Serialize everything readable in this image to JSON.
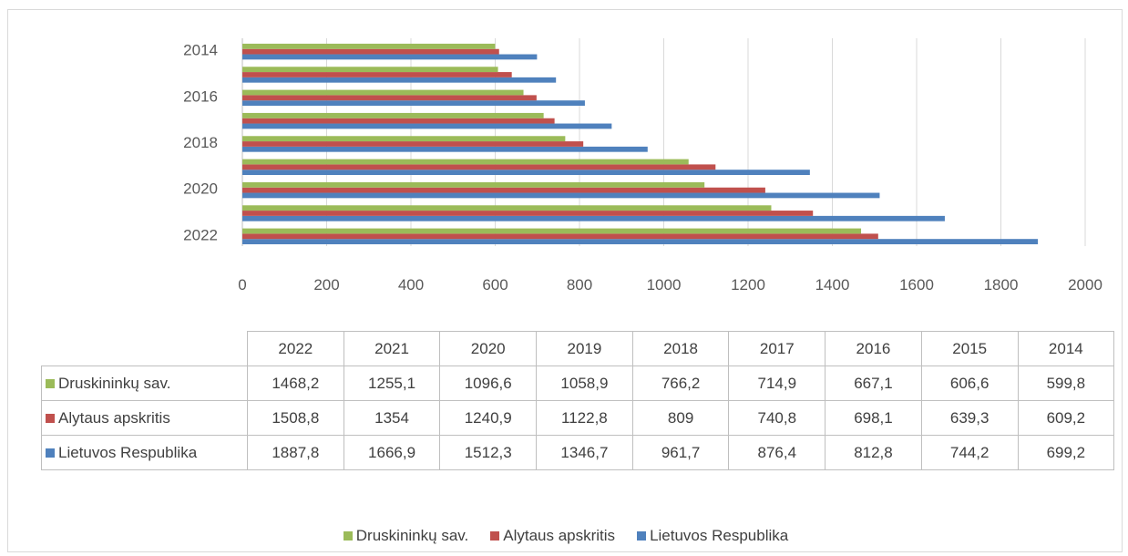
{
  "chart_data": {
    "type": "bar",
    "orientation": "horizontal",
    "categories": [
      "2022",
      "2021",
      "2020",
      "2019",
      "2018",
      "2017",
      "2016",
      "2015",
      "2014"
    ],
    "series": [
      {
        "name": "Druskininkų sav.",
        "color": "#9bbb59",
        "values": [
          1468.2,
          1255.1,
          1096.6,
          1058.9,
          766.2,
          714.9,
          667.1,
          606.6,
          599.8
        ],
        "display": [
          "1468,2",
          "1255,1",
          "1096,6",
          "1058,9",
          "766,2",
          "714,9",
          "667,1",
          "606,6",
          "599,8"
        ]
      },
      {
        "name": "Alytaus apskritis",
        "color": "#c0504d",
        "values": [
          1508.8,
          1354,
          1240.9,
          1122.8,
          809,
          740.8,
          698.1,
          639.3,
          609.2
        ],
        "display": [
          "1508,8",
          "1354",
          "1240,9",
          "1122,8",
          "809",
          "740,8",
          "698,1",
          "639,3",
          "609,2"
        ]
      },
      {
        "name": "Lietuvos Respublika",
        "color": "#4f81bd",
        "values": [
          1887.8,
          1666.9,
          1512.3,
          1346.7,
          961.7,
          876.4,
          812.8,
          744.2,
          699.2
        ],
        "display": [
          "1887,8",
          "1666,9",
          "1512,3",
          "1346,7",
          "961,7",
          "876,4",
          "812,8",
          "744,2",
          "699,2"
        ]
      }
    ],
    "y_tick_labels": [
      "2014",
      "2016",
      "2018",
      "2020",
      "2022"
    ],
    "x_ticks": [
      0,
      200,
      400,
      600,
      800,
      1000,
      1200,
      1400,
      1600,
      1800,
      2000
    ],
    "xlim": [
      0,
      2000
    ],
    "grid": "vertical",
    "legend_position": "bottom",
    "data_table": true,
    "title": "",
    "xlabel": "",
    "ylabel": ""
  }
}
